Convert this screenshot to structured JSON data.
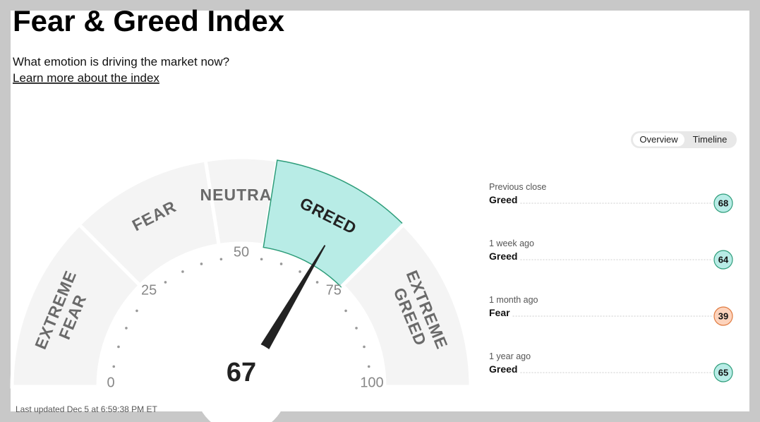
{
  "header": {
    "title": "Fear & Greed Index",
    "subtitle": "What emotion is driving the market now?",
    "link": "Learn more about the index"
  },
  "tabs": [
    "Overview",
    "Timeline"
  ],
  "gauge": {
    "value": 67,
    "min": 0,
    "max": 100,
    "ticks": [
      0,
      25,
      50,
      75,
      100
    ],
    "segments": [
      {
        "label": [
          "EXTREME",
          "FEAR"
        ],
        "from": 0,
        "to": 25
      },
      {
        "label": [
          "FEAR"
        ],
        "from": 25,
        "to": 45
      },
      {
        "label": [
          "NEUTRAL"
        ],
        "from": 45,
        "to": 55
      },
      {
        "label": [
          "GREED"
        ],
        "from": 55,
        "to": 75
      },
      {
        "label": [
          "EXTREME",
          "GREED"
        ],
        "from": 75,
        "to": 100
      }
    ],
    "color": "#b8ece6",
    "border": "#2e9d7a"
  },
  "history": [
    {
      "period": "Previous close",
      "rating": "Greed",
      "value": 68,
      "color": "#b8ece6",
      "border": "#2e9d7a"
    },
    {
      "period": "1 week ago",
      "rating": "Greed",
      "value": 64,
      "color": "#b8ece6",
      "border": "#2e9d7a"
    },
    {
      "period": "1 month ago",
      "rating": "Fear",
      "value": 39,
      "color": "#fdd3bc",
      "border": "#e07a3f"
    },
    {
      "period": "1 year ago",
      "rating": "Greed",
      "value": 65,
      "color": "#b8ece6",
      "border": "#2e9d7a"
    }
  ],
  "footer": "Last updated Dec 5 at 6:59:38 PM ET"
}
